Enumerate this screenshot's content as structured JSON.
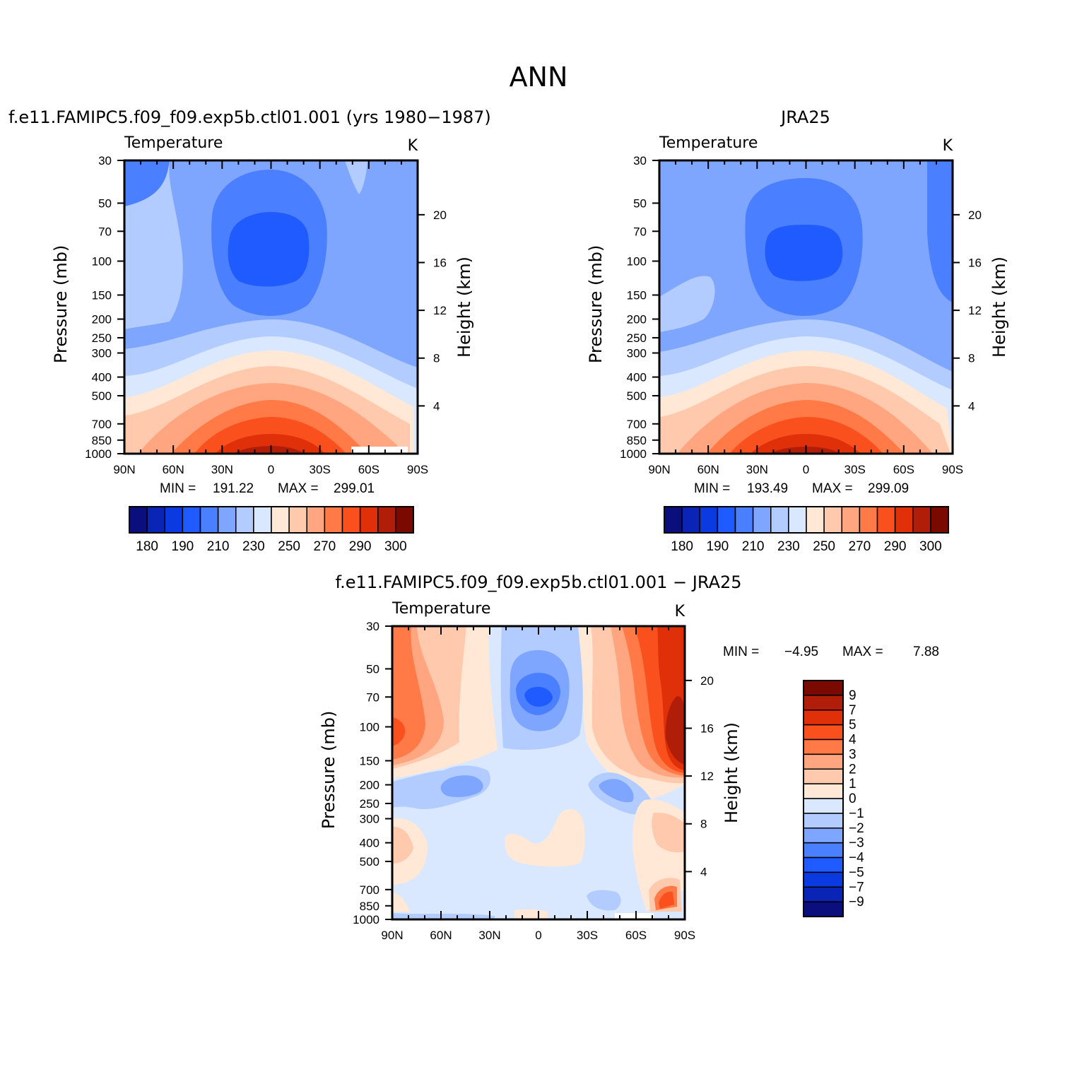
{
  "figure": {
    "title": "ANN"
  },
  "panels": [
    {
      "id": "model",
      "title": "f.e11.FAMIPC5.f09_f09.exp5b.ctl01.001 (yrs 1980−1987)",
      "left_title": "Temperature",
      "right_title": "K",
      "stats": {
        "min_label": "MIN =",
        "min": "191.22",
        "max_label": "MAX =",
        "max": "299.01"
      }
    },
    {
      "id": "obs",
      "title": "JRA25",
      "left_title": "Temperature",
      "right_title": "K",
      "stats": {
        "min_label": "MIN =",
        "min": "193.49",
        "max_label": "MAX =",
        "max": "299.09"
      }
    },
    {
      "id": "diff",
      "title": "f.e11.FAMIPC5.f09_f09.exp5b.ctl01.001 − JRA25",
      "left_title": "Temperature",
      "right_title": "K",
      "stats": {
        "min_label": "MIN =",
        "min": "−4.95",
        "max_label": "MAX =",
        "max": "7.88"
      }
    }
  ],
  "axes": {
    "ylabel_left": "Pressure (mb)",
    "ylabel_right": "Height (km)",
    "x_ticks": [
      "90N",
      "60N",
      "30N",
      "0",
      "30S",
      "60S",
      "90S"
    ],
    "y_ticks": [
      "30",
      "50",
      "70",
      "100",
      "150",
      "200",
      "250",
      "300",
      "400",
      "500",
      "700",
      "850",
      "1000"
    ],
    "height_ticks": [
      "20",
      "16",
      "12",
      "8",
      "4"
    ]
  },
  "colorbars": {
    "abs": {
      "orientation": "horizontal",
      "colors": [
        "#0a0f7d",
        "#0a24b5",
        "#0a3ae0",
        "#1f5bff",
        "#4a80ff",
        "#7fa6ff",
        "#b3ccff",
        "#d9e8ff",
        "#ffe9d6",
        "#ffc9ad",
        "#ffa680",
        "#ff7a47",
        "#fa501e",
        "#e0300a",
        "#b01e0a",
        "#7a0a00"
      ],
      "labels": [
        "180",
        "190",
        "210",
        "230",
        "250",
        "270",
        "290",
        "300"
      ]
    },
    "diff": {
      "orientation": "vertical",
      "colors": [
        "#7a0a00",
        "#b01e0a",
        "#e0300a",
        "#fa501e",
        "#ff7a47",
        "#ffa680",
        "#ffc9ad",
        "#ffe9d6",
        "#d9e8ff",
        "#b3ccff",
        "#7fa6ff",
        "#4a80ff",
        "#1f5bff",
        "#0a3ae0",
        "#0a24b5",
        "#0a0f7d"
      ],
      "labels": [
        "9",
        "7",
        "5",
        "4",
        "3",
        "2",
        "1",
        "0",
        "−1",
        "−2",
        "−3",
        "−4",
        "−5",
        "−7",
        "−9"
      ]
    }
  },
  "chart_data": [
    {
      "type": "heatmap",
      "title": "f.e11.FAMIPC5.f09_f09.exp5b.ctl01.001 (yrs 1980−1987)",
      "variable": "Temperature",
      "units": "K",
      "x_range": [
        "90N",
        "90S"
      ],
      "y_range_mb": [
        30,
        1000
      ],
      "y_scale": "log",
      "min": 191.22,
      "max": 299.01,
      "colorbar_levels": [
        180,
        190,
        210,
        230,
        250,
        270,
        290,
        300
      ]
    },
    {
      "type": "heatmap",
      "title": "JRA25",
      "variable": "Temperature",
      "units": "K",
      "x_range": [
        "90N",
        "90S"
      ],
      "y_range_mb": [
        30,
        1000
      ],
      "y_scale": "log",
      "min": 193.49,
      "max": 299.09,
      "colorbar_levels": [
        180,
        190,
        210,
        230,
        250,
        270,
        290,
        300
      ]
    },
    {
      "type": "heatmap",
      "title": "f.e11.FAMIPC5.f09_f09.exp5b.ctl01.001 − JRA25",
      "variable": "Temperature",
      "units": "K",
      "x_range": [
        "90N",
        "90S"
      ],
      "y_range_mb": [
        30,
        1000
      ],
      "y_scale": "log",
      "min": -4.95,
      "max": 7.88,
      "colorbar_levels": [
        9,
        7,
        5,
        4,
        3,
        2,
        1,
        0,
        -1,
        -2,
        -3,
        -4,
        -5,
        -7,
        -9
      ]
    }
  ]
}
